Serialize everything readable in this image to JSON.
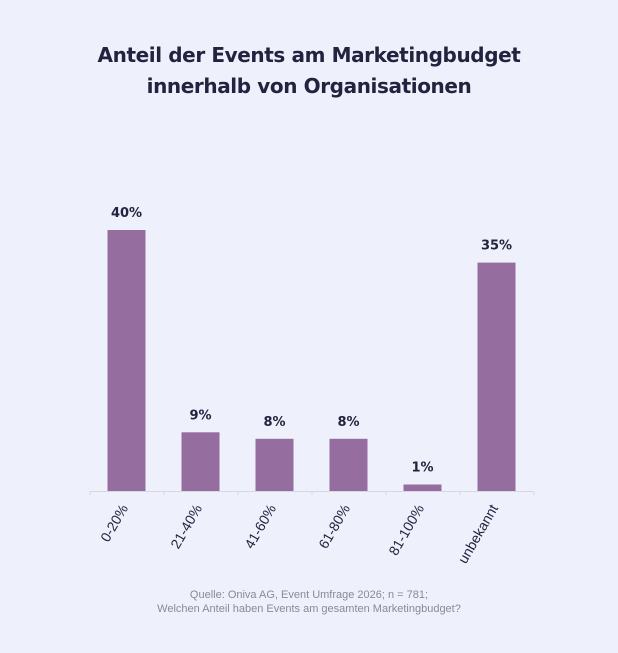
{
  "title": {
    "line1": "Anteil der Events am Marketingbudget",
    "line2": "innerhalb von Organisationen"
  },
  "colors": {
    "bar": "#956d9f",
    "axis": "#d6d6e4",
    "background": "#eef0fc",
    "label": "#24233f"
  },
  "chart_data": {
    "type": "bar",
    "title": "Anteil der Events am Marketingbudget innerhalb von Organisationen",
    "categories": [
      "0-20%",
      "21-40%",
      "41-60%",
      "61-80%",
      "81-100%",
      "unbekannt"
    ],
    "values": [
      40,
      9,
      8,
      8,
      1,
      35
    ],
    "data_labels": [
      "40%",
      "9%",
      "8%",
      "8%",
      "1%",
      "35%"
    ],
    "unit": "%",
    "ylim": [
      0,
      40
    ],
    "grid": false,
    "legend": "none"
  },
  "footer": {
    "line1": "Quelle: Oniva AG, Event Umfrage 2026; n = 781;",
    "line2": "Welchen Anteil haben Events am gesamten Marketingbudget?"
  }
}
